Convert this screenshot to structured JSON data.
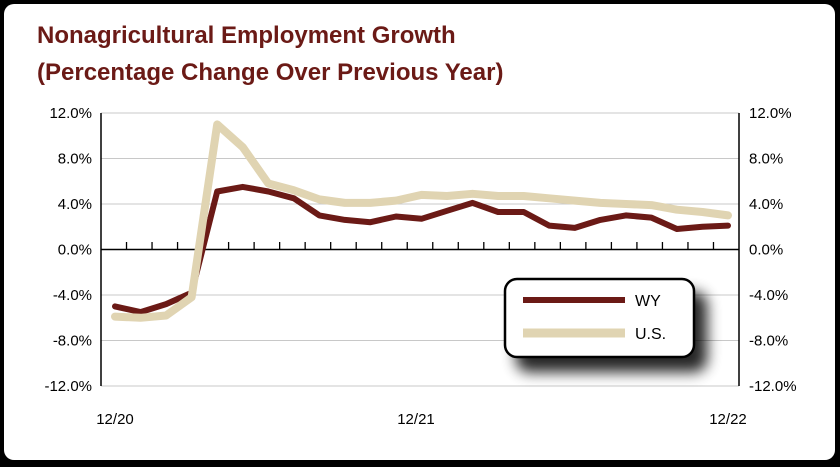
{
  "chart_data": {
    "type": "line",
    "title": "Nonagricultural Employment Growth",
    "subtitle": "(Percentage Change Over Previous Year)",
    "x": [
      "12/20",
      "1/21",
      "2/21",
      "3/21",
      "4/21",
      "5/21",
      "6/21",
      "7/21",
      "8/21",
      "9/21",
      "10/21",
      "11/21",
      "12/21",
      "1/22",
      "2/22",
      "3/22",
      "4/22",
      "5/22",
      "6/22",
      "7/22",
      "8/22",
      "9/22",
      "10/22",
      "11/22",
      "12/22"
    ],
    "x_tick_labels": [
      "12/20",
      "12/21",
      "12/22"
    ],
    "y_tick_labels": [
      "12.0%",
      "8.0%",
      "4.0%",
      "0.0%",
      "-4.0%",
      "-8.0%",
      "-12.0%"
    ],
    "ylim": [
      -12,
      12
    ],
    "yticks": [
      12,
      8,
      4,
      0,
      -4,
      -8,
      -12
    ],
    "series": [
      {
        "name": "WY",
        "color": "#6b1a16",
        "values": [
          -5.0,
          -5.5,
          -4.8,
          -3.8,
          5.1,
          5.5,
          5.1,
          4.5,
          3.0,
          2.6,
          2.4,
          2.9,
          2.7,
          3.4,
          4.1,
          3.3,
          3.3,
          2.1,
          1.9,
          2.6,
          3.0,
          2.8,
          1.8,
          2.0,
          2.1
        ]
      },
      {
        "name": "U.S.",
        "color": "#e0d4b2",
        "values": [
          -5.9,
          -6.0,
          -5.8,
          -4.2,
          11.0,
          9.0,
          5.8,
          5.2,
          4.4,
          4.1,
          4.1,
          4.3,
          4.8,
          4.7,
          4.9,
          4.7,
          4.7,
          4.5,
          4.3,
          4.1,
          4.0,
          3.9,
          3.5,
          3.3,
          3.0
        ]
      }
    ],
    "grid": true,
    "legend_position": "lower-right",
    "secondary_y_axis": true
  }
}
